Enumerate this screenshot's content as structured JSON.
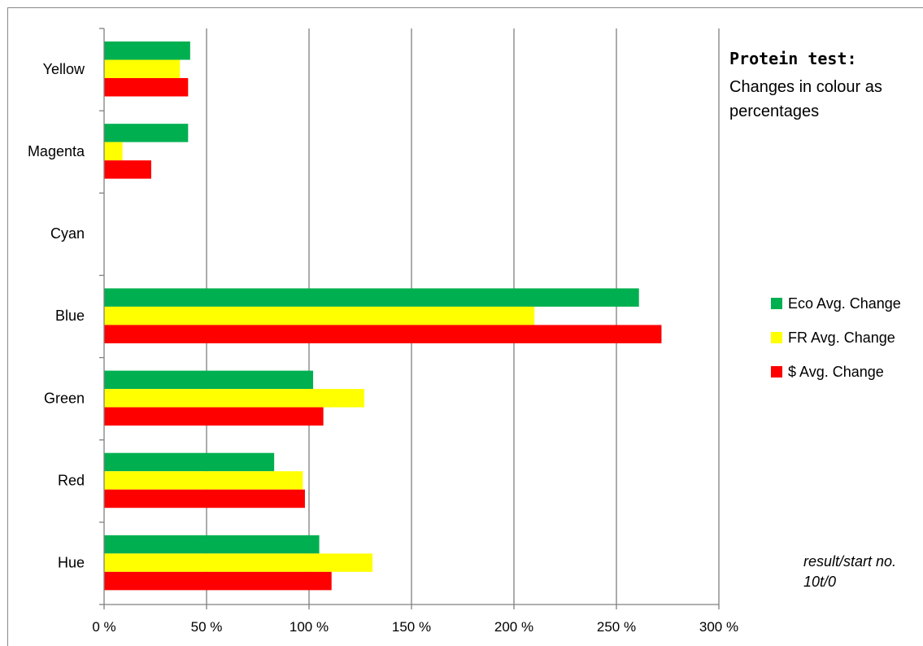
{
  "chart_data": {
    "type": "bar",
    "orientation": "horizontal",
    "title": "Protein test:",
    "subtitle": "Changes in colour as percentages",
    "categories": [
      "Yellow",
      "Magenta",
      "Cyan",
      "Blue",
      "Green",
      "Red",
      "Hue"
    ],
    "series": [
      {
        "name": "Eco Avg. Change",
        "color": "#00B050",
        "values": [
          42,
          41,
          null,
          261,
          102,
          83,
          105
        ]
      },
      {
        "name": "FR Avg. Change",
        "color": "#FFFF00",
        "values": [
          37,
          9,
          null,
          210,
          127,
          97,
          131
        ]
      },
      {
        "name": "$ Avg. Change",
        "color": "#FF0000",
        "values": [
          41,
          23,
          null,
          272,
          107,
          98,
          111
        ]
      }
    ],
    "xlim": [
      0,
      300
    ],
    "x_ticks": [
      0,
      50,
      100,
      150,
      200,
      250,
      300
    ],
    "x_tick_labels": [
      "0 %",
      "50 %",
      "100 %",
      "150 %",
      "200 %",
      "250 %",
      "300 %"
    ],
    "grid": "vertical major gridlines",
    "legend_position": "right",
    "annotation": [
      "result/start no.",
      "10t/0"
    ]
  }
}
